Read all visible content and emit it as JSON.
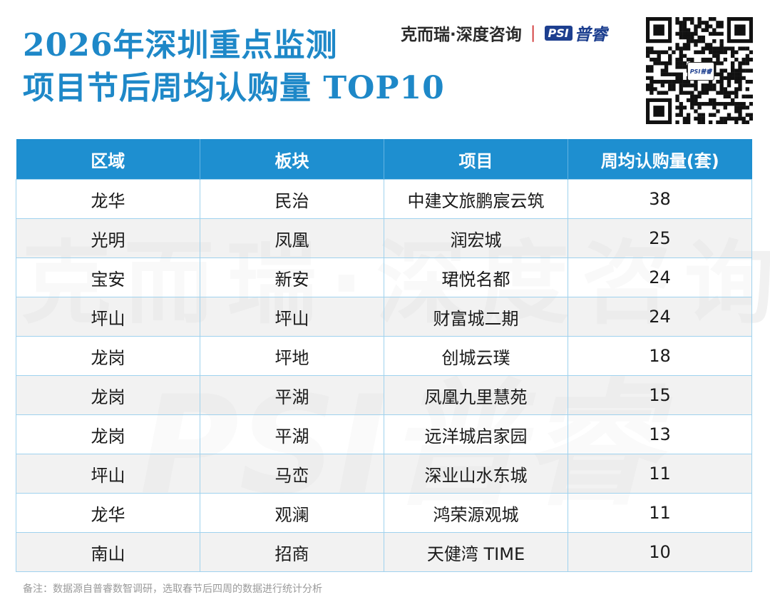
{
  "title": {
    "line1": "2026年深圳重点监测",
    "line2": "项目节后周均认购量 TOP10"
  },
  "brand": {
    "company": "克而瑞·深度咨询",
    "separator": "|",
    "logo_mark": "PSI",
    "logo_text": "普睿"
  },
  "watermark": {
    "line1": "克而瑞·深度咨询",
    "line2": "PSI普睿"
  },
  "qr_code": {
    "center_label": "PSI普睿"
  },
  "chart_data": {
    "type": "table",
    "columns": [
      "区域",
      "板块",
      "项目",
      "周均认购量(套)"
    ],
    "rows": [
      [
        "龙华",
        "民治",
        "中建文旅鹏宸云筑",
        "38"
      ],
      [
        "光明",
        "凤凰",
        "润宏城",
        "25"
      ],
      [
        "宝安",
        "新安",
        "珺悦名都",
        "24"
      ],
      [
        "坪山",
        "坪山",
        "财富城二期",
        "24"
      ],
      [
        "龙岗",
        "坪地",
        "创城云璞",
        "18"
      ],
      [
        "龙岗",
        "平湖",
        "凤凰九里慧苑",
        "15"
      ],
      [
        "龙岗",
        "平湖",
        "远洋城启家园",
        "13"
      ],
      [
        "坪山",
        "马峦",
        "深业山水东城",
        "11"
      ],
      [
        "龙华",
        "观澜",
        "鸿荣源观城",
        "11"
      ],
      [
        "南山",
        "招商",
        "天健湾 TIME",
        "10"
      ]
    ]
  },
  "footnote": "备注：数据源自普睿数智调研，选取春节后四周的数据进行统计分析",
  "colors": {
    "accent": "#1e88c8",
    "header_bg": "#1e8fd0",
    "row_alt": "#e8e8e8",
    "border": "#9fd2ee"
  }
}
